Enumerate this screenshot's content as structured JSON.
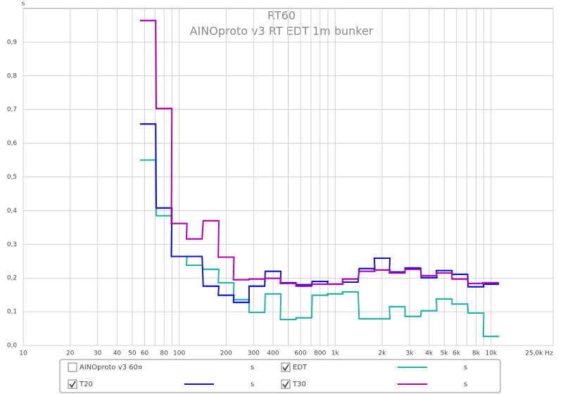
{
  "chart_data": {
    "type": "step",
    "title": "RT60",
    "subtitle": "AINOproto v3 RT EDT 1m bunker",
    "y_unit": "s",
    "log_x": true,
    "grid": true,
    "xlim": [
      10,
      25000
    ],
    "ylim": [
      0,
      1
    ],
    "xticks": [
      10,
      20,
      30,
      40,
      50,
      60,
      80,
      100,
      200,
      300,
      400,
      600,
      800,
      {
        "value": 1000,
        "label": "1k"
      },
      {
        "value": 2000,
        "label": "2k"
      },
      {
        "value": 3000,
        "label": "3k"
      },
      {
        "value": 4000,
        "label": "4k"
      },
      {
        "value": 5000,
        "label": "5k"
      },
      {
        "value": 6000,
        "label": "6k"
      },
      {
        "value": 8000,
        "label": "8k"
      },
      {
        "value": 10000,
        "label": "10k"
      },
      {
        "value": 25000,
        "label": "25,0k Hz"
      }
    ],
    "x_minor_ticks": [
      70,
      90,
      500,
      700,
      900,
      7000,
      9000
    ],
    "yticks": [
      {
        "value": 0,
        "label": "0,0"
      },
      {
        "value": 0.1,
        "label": "0,1"
      },
      {
        "value": 0.2,
        "label": "0,2"
      },
      {
        "value": 0.3,
        "label": "0,3"
      },
      {
        "value": 0.4,
        "label": "0,4"
      },
      {
        "value": 0.5,
        "label": "0,5"
      },
      {
        "value": 0.6,
        "label": "0,6"
      },
      {
        "value": 0.7,
        "label": "0,7"
      },
      {
        "value": 0.8,
        "label": "0,8"
      },
      {
        "value": 0.9,
        "label": "0,9"
      }
    ],
    "x": [
      63,
      80,
      100,
      125,
      160,
      200,
      250,
      315,
      400,
      500,
      630,
      800,
      1000,
      1250,
      1600,
      2000,
      2500,
      3150,
      4000,
      5000,
      6300,
      8000,
      10000
    ],
    "series": [
      {
        "name": "EDT",
        "color": "#20b2aa",
        "checked": true,
        "unit": "s",
        "values": [
          0.55,
          0.385,
          0.264,
          0.238,
          0.226,
          0.186,
          0.136,
          0.098,
          0.153,
          0.077,
          0.082,
          0.149,
          0.153,
          0.159,
          0.079,
          0.079,
          0.115,
          0.086,
          0.103,
          0.138,
          0.123,
          0.096,
          0.027
        ]
      },
      {
        "name": "T20",
        "color": "#1010c8",
        "checked": true,
        "unit": "s",
        "values": [
          0.657,
          0.408,
          0.264,
          0.264,
          0.176,
          0.149,
          0.128,
          0.176,
          0.22,
          0.186,
          0.18,
          0.19,
          0.182,
          0.188,
          0.228,
          0.259,
          0.218,
          0.23,
          0.201,
          0.222,
          0.211,
          0.174,
          0.182
        ]
      },
      {
        "name": "T30",
        "color": "#b000b0",
        "checked": true,
        "unit": "s",
        "values": [
          0.964,
          0.703,
          0.362,
          0.316,
          0.37,
          0.262,
          0.195,
          0.197,
          0.199,
          0.184,
          0.176,
          0.182,
          0.182,
          0.197,
          0.22,
          0.224,
          0.215,
          0.226,
          0.207,
          0.215,
          0.197,
          0.184,
          0.186
        ]
      }
    ],
    "extra_legend": {
      "name": "AINOproto v3 60¤",
      "color": "#2e8b2e",
      "checked": false,
      "unit": "s"
    }
  }
}
